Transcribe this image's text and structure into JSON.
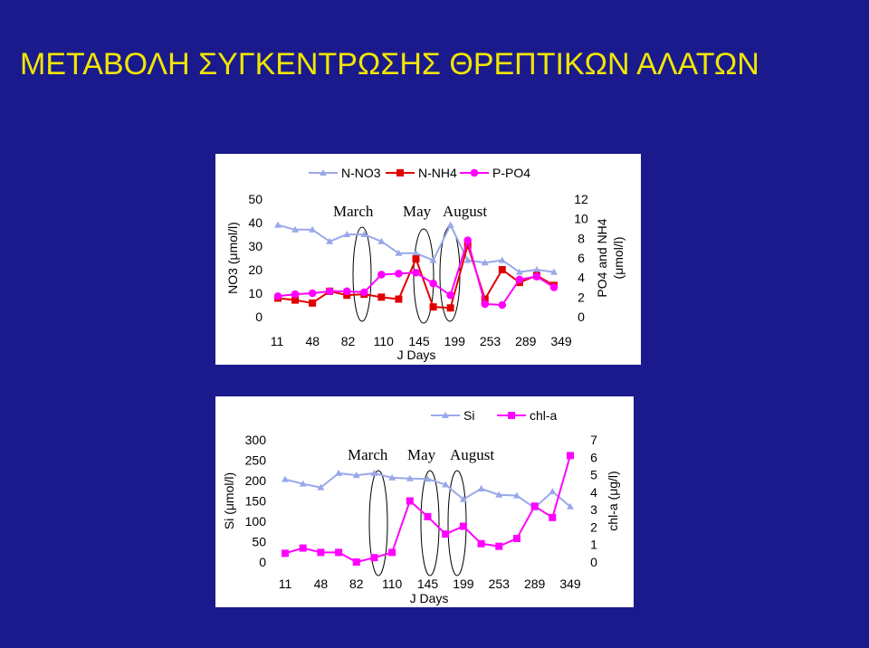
{
  "title": "ΜΕΤΑΒΟΛΗ ΣΥΓΚΕΝΤΡΩΣΗΣ ΘΡΕΠΤΙΚΩΝ ΑΛΑΤΩΝ",
  "colors": {
    "background": "#1a1a8c",
    "title": "#f2e600",
    "light_blue": "#9aa8ea",
    "red": "#e00000",
    "magenta": "#ff00ff"
  },
  "chart_data": [
    {
      "type": "line",
      "xlabel": "J Days",
      "ylabel_left": "NO3 (μmol/l)",
      "ylabel_right": "PO4 and NH4 (μmol/l)",
      "ylim_left": [
        0,
        50
      ],
      "ylim_right": [
        0,
        12
      ],
      "yticks_left": [
        "0",
        "10",
        "20",
        "30",
        "40",
        "50"
      ],
      "yticks_right": [
        "0",
        "2",
        "4",
        "6",
        "8",
        "10",
        "12"
      ],
      "xtick_labels": [
        "11",
        "48",
        "82",
        "110",
        "145",
        "199",
        "253",
        "289",
        "349"
      ],
      "annotations": [
        "March",
        "May",
        "August"
      ],
      "legend": [
        "N-NO3",
        "N-NH4",
        "P-PO4"
      ],
      "series": [
        {
          "name": "N-NO3",
          "axis": "left",
          "color": "#9aa8ea",
          "marker": "triangle",
          "values": [
            39,
            37,
            37,
            32,
            35,
            35,
            32,
            27,
            27,
            24,
            39,
            24,
            23,
            24,
            19,
            20,
            19
          ]
        },
        {
          "name": "N-NH4",
          "axis": "right",
          "color": "#e00000",
          "marker": "square",
          "values": [
            1.9,
            1.7,
            1.4,
            2.6,
            2.2,
            2.3,
            2.0,
            1.8,
            5.9,
            1.0,
            0.9,
            7.3,
            1.8,
            4.8,
            3.5,
            4.2,
            3.2
          ]
        },
        {
          "name": "P-PO4",
          "axis": "right",
          "color": "#ff00ff",
          "marker": "circle",
          "values": [
            2.1,
            2.3,
            2.4,
            2.6,
            2.6,
            2.5,
            4.3,
            4.4,
            4.5,
            3.4,
            2.2,
            7.8,
            1.3,
            1.2,
            3.8,
            4.1,
            3.0
          ]
        }
      ]
    },
    {
      "type": "line",
      "xlabel": "J Days",
      "ylabel_left": "Si (μmol/l)",
      "ylabel_right": "chl-a (μg/l)",
      "ylim_left": [
        0,
        300
      ],
      "ylim_right": [
        0,
        7
      ],
      "yticks_left": [
        "0",
        "50",
        "100",
        "150",
        "200",
        "250",
        "300"
      ],
      "yticks_right": [
        "0",
        "1",
        "2",
        "3",
        "4",
        "5",
        "6",
        "7"
      ],
      "xtick_labels": [
        "11",
        "48",
        "82",
        "110",
        "145",
        "199",
        "253",
        "289",
        "349"
      ],
      "annotations": [
        "March",
        "May",
        "August"
      ],
      "legend": [
        "Si",
        "chl-a"
      ],
      "series": [
        {
          "name": "Si",
          "axis": "left",
          "color": "#9aa8ea",
          "marker": "triangle",
          "values": [
            203,
            192,
            183,
            218,
            213,
            218,
            207,
            205,
            204,
            190,
            154,
            180,
            165,
            163,
            133,
            173,
            136
          ]
        },
        {
          "name": "chl-a",
          "axis": "right",
          "color": "#ff00ff",
          "marker": "square",
          "values": [
            0.5,
            0.8,
            0.55,
            0.55,
            0.0,
            0.25,
            0.55,
            3.5,
            2.6,
            1.6,
            2.05,
            1.05,
            0.9,
            1.35,
            3.2,
            2.55,
            6.1
          ]
        }
      ]
    }
  ]
}
